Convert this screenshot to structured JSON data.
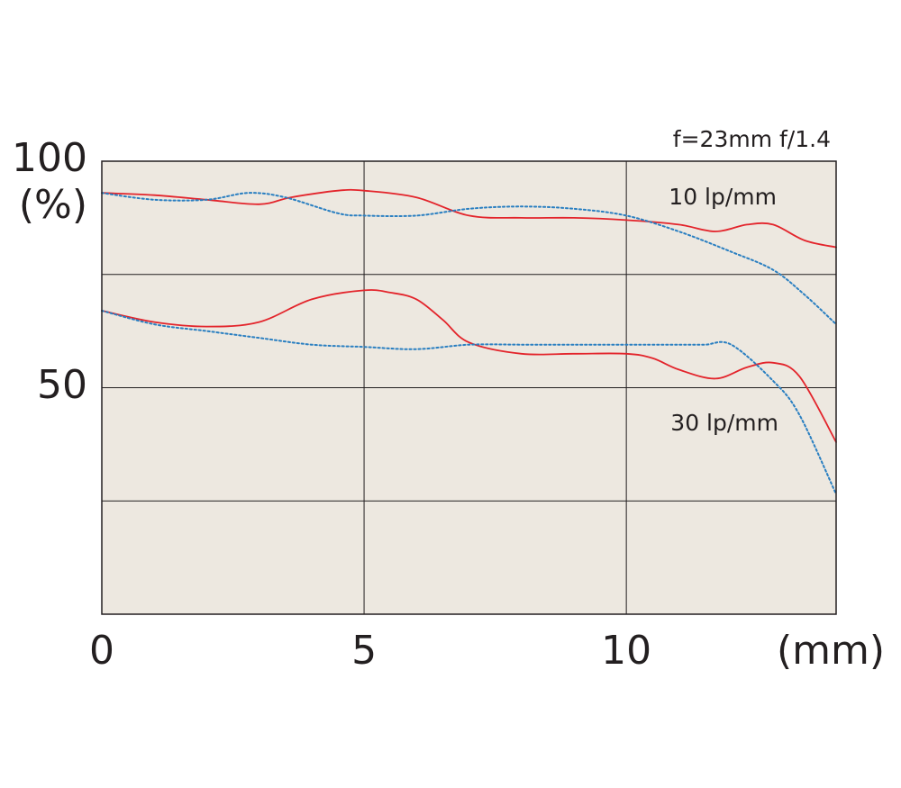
{
  "chart_data": {
    "type": "line",
    "title": "f=23mm f/1.4",
    "xlabel": "(mm)",
    "ylabel": "(%)",
    "xlim": [
      0,
      14
    ],
    "ylim": [
      0,
      100
    ],
    "x_ticks": [
      0,
      5,
      10
    ],
    "x_tick_labels": [
      "0",
      "5",
      "10"
    ],
    "y_ticks": [
      50,
      100
    ],
    "y_tick_labels": [
      "50",
      "100"
    ],
    "grid": true,
    "background_color": "#ede8e0",
    "series_colors": {
      "solid": "#e3242b",
      "dotted": "#2a7fc1"
    },
    "annotations": [
      "10 lp/mm",
      "30 lp/mm"
    ],
    "series": [
      {
        "group": "10 lp/mm",
        "style": "solid",
        "color": "#e3242b",
        "x": [
          0,
          1,
          2,
          3,
          3.6,
          4.5,
          5,
          6,
          7,
          8,
          9,
          10,
          11,
          11.7,
          12.3,
          12.8,
          13.4,
          14
        ],
        "y": [
          93,
          92.5,
          91.5,
          90.5,
          92,
          93.5,
          93.5,
          92,
          88,
          87.5,
          87.5,
          87,
          86,
          84.5,
          86,
          86,
          82.5,
          81
        ]
      },
      {
        "group": "10 lp/mm",
        "style": "dotted",
        "color": "#2a7fc1",
        "x": [
          0,
          1,
          2,
          2.8,
          3.5,
          4.5,
          5,
          6,
          7,
          8,
          9,
          10,
          11,
          12,
          12.8,
          13.4,
          14
        ],
        "y": [
          93,
          91.5,
          91.5,
          93,
          92,
          88.5,
          88,
          88,
          89.5,
          90,
          89.5,
          88,
          84.5,
          80,
          76,
          70.5,
          64
        ]
      },
      {
        "group": "30 lp/mm",
        "style": "solid",
        "color": "#e3242b",
        "x": [
          0,
          1,
          2,
          3,
          4,
          5,
          5.5,
          6,
          6.5,
          7,
          8,
          9,
          10,
          10.5,
          11,
          11.7,
          12.3,
          12.8,
          13.3,
          14
        ],
        "y": [
          67,
          64.5,
          63.5,
          64.5,
          69.5,
          71.5,
          71,
          69.5,
          65,
          60,
          57.5,
          57.5,
          57.5,
          56.5,
          54,
          52,
          54.5,
          55.5,
          52.5,
          38
        ]
      },
      {
        "group": "30 lp/mm",
        "style": "dotted",
        "color": "#2a7fc1",
        "x": [
          0,
          1,
          2,
          3,
          4,
          5,
          6,
          7,
          8,
          9,
          10,
          10.5,
          11,
          11.5,
          12,
          12.8,
          13.3,
          14
        ],
        "y": [
          67,
          64,
          62.5,
          61,
          59.5,
          59,
          58.5,
          59.5,
          59.5,
          59.5,
          59.5,
          59.5,
          59.5,
          59.5,
          59.5,
          51.5,
          44,
          26.5
        ]
      }
    ]
  }
}
